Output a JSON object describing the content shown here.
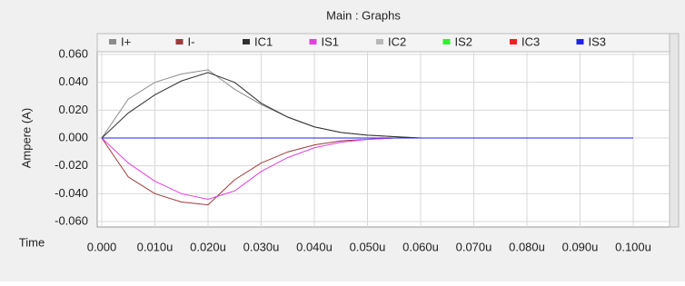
{
  "chart_data": {
    "type": "line",
    "title": "Main : Graphs",
    "x_label": "Time",
    "y_label": "Ampere (A)",
    "x": [
      0,
      0.005,
      0.01,
      0.015,
      0.02,
      0.025,
      0.03,
      0.035,
      0.04,
      0.045,
      0.05,
      0.055,
      0.06,
      0.065,
      0.07,
      0.075,
      0.08,
      0.085,
      0.09,
      0.095,
      0.1
    ],
    "series": [
      {
        "name": "I+",
        "color": "#8c8c8c",
        "values": [
          0,
          0.028,
          0.04,
          0.046,
          0.049,
          0.035,
          0.024,
          0.015,
          0.008,
          0.004,
          0.002,
          0.001,
          0,
          0,
          0,
          0,
          0,
          0,
          0,
          0,
          0
        ]
      },
      {
        "name": "I-",
        "color": "#9c3a3a",
        "values": [
          0,
          -0.028,
          -0.04,
          -0.046,
          -0.048,
          -0.03,
          -0.018,
          -0.01,
          -0.005,
          -0.002,
          -0.001,
          0,
          0,
          0,
          0,
          0,
          0,
          0,
          0,
          0,
          0
        ]
      },
      {
        "name": "IC1",
        "color": "#303030",
        "values": [
          0,
          0.018,
          0.031,
          0.041,
          0.047,
          0.04,
          0.025,
          0.015,
          0.008,
          0.004,
          0.002,
          0.001,
          0,
          0,
          0,
          0,
          0,
          0,
          0,
          0,
          0
        ]
      },
      {
        "name": "IS1",
        "color": "#e040e0",
        "values": [
          0,
          -0.018,
          -0.031,
          -0.04,
          -0.044,
          -0.038,
          -0.024,
          -0.014,
          -0.007,
          -0.003,
          -0.001,
          0,
          0,
          0,
          0,
          0,
          0,
          0,
          0,
          0,
          0
        ]
      },
      {
        "name": "IC2",
        "color": "#b8b8b8",
        "values": [
          0,
          0,
          0,
          0,
          0,
          0,
          0,
          0,
          0,
          0,
          0,
          0,
          0,
          0,
          0,
          0,
          0,
          0,
          0,
          0,
          0
        ]
      },
      {
        "name": "IS2",
        "color": "#33ee33",
        "values": [
          0,
          0,
          0,
          0,
          0,
          0,
          0,
          0,
          0,
          0,
          0,
          0,
          0,
          0,
          0,
          0,
          0,
          0,
          0,
          0,
          0
        ]
      },
      {
        "name": "IC3",
        "color": "#ee2222",
        "values": [
          0,
          0,
          0,
          0,
          0,
          0,
          0,
          0,
          0,
          0,
          0,
          0,
          0,
          0,
          0,
          0,
          0,
          0,
          0,
          0,
          0
        ]
      },
      {
        "name": "IS3",
        "color": "#2222ee",
        "values": [
          0,
          0,
          0,
          0,
          0,
          0,
          0,
          0,
          0,
          0,
          0,
          0,
          0,
          0,
          0,
          0,
          0,
          0,
          0,
          0,
          0
        ]
      }
    ],
    "xlim": [
      0,
      0.1
    ],
    "xticks": [
      {
        "value": 0,
        "label": "0.000"
      },
      {
        "value": 0.01,
        "label": "0.010u"
      },
      {
        "value": 0.02,
        "label": "0.020u"
      },
      {
        "value": 0.03,
        "label": "0.030u"
      },
      {
        "value": 0.04,
        "label": "0.040u"
      },
      {
        "value": 0.05,
        "label": "0.050u"
      },
      {
        "value": 0.06,
        "label": "0.060u"
      },
      {
        "value": 0.07,
        "label": "0.070u"
      },
      {
        "value": 0.08,
        "label": "0.080u"
      },
      {
        "value": 0.09,
        "label": "0.090u"
      },
      {
        "value": 0.1,
        "label": "0.100u"
      }
    ],
    "ylim": [
      -0.06,
      0.06
    ],
    "yticks": [
      {
        "value": 0.06,
        "label": "0.060"
      },
      {
        "value": 0.04,
        "label": "0.040"
      },
      {
        "value": 0.02,
        "label": "0.020"
      },
      {
        "value": 0,
        "label": "0.000"
      },
      {
        "value": -0.02,
        "label": "-0.020"
      },
      {
        "value": -0.04,
        "label": "-0.040"
      },
      {
        "value": -0.06,
        "label": "-0.060"
      }
    ],
    "grid": true
  }
}
